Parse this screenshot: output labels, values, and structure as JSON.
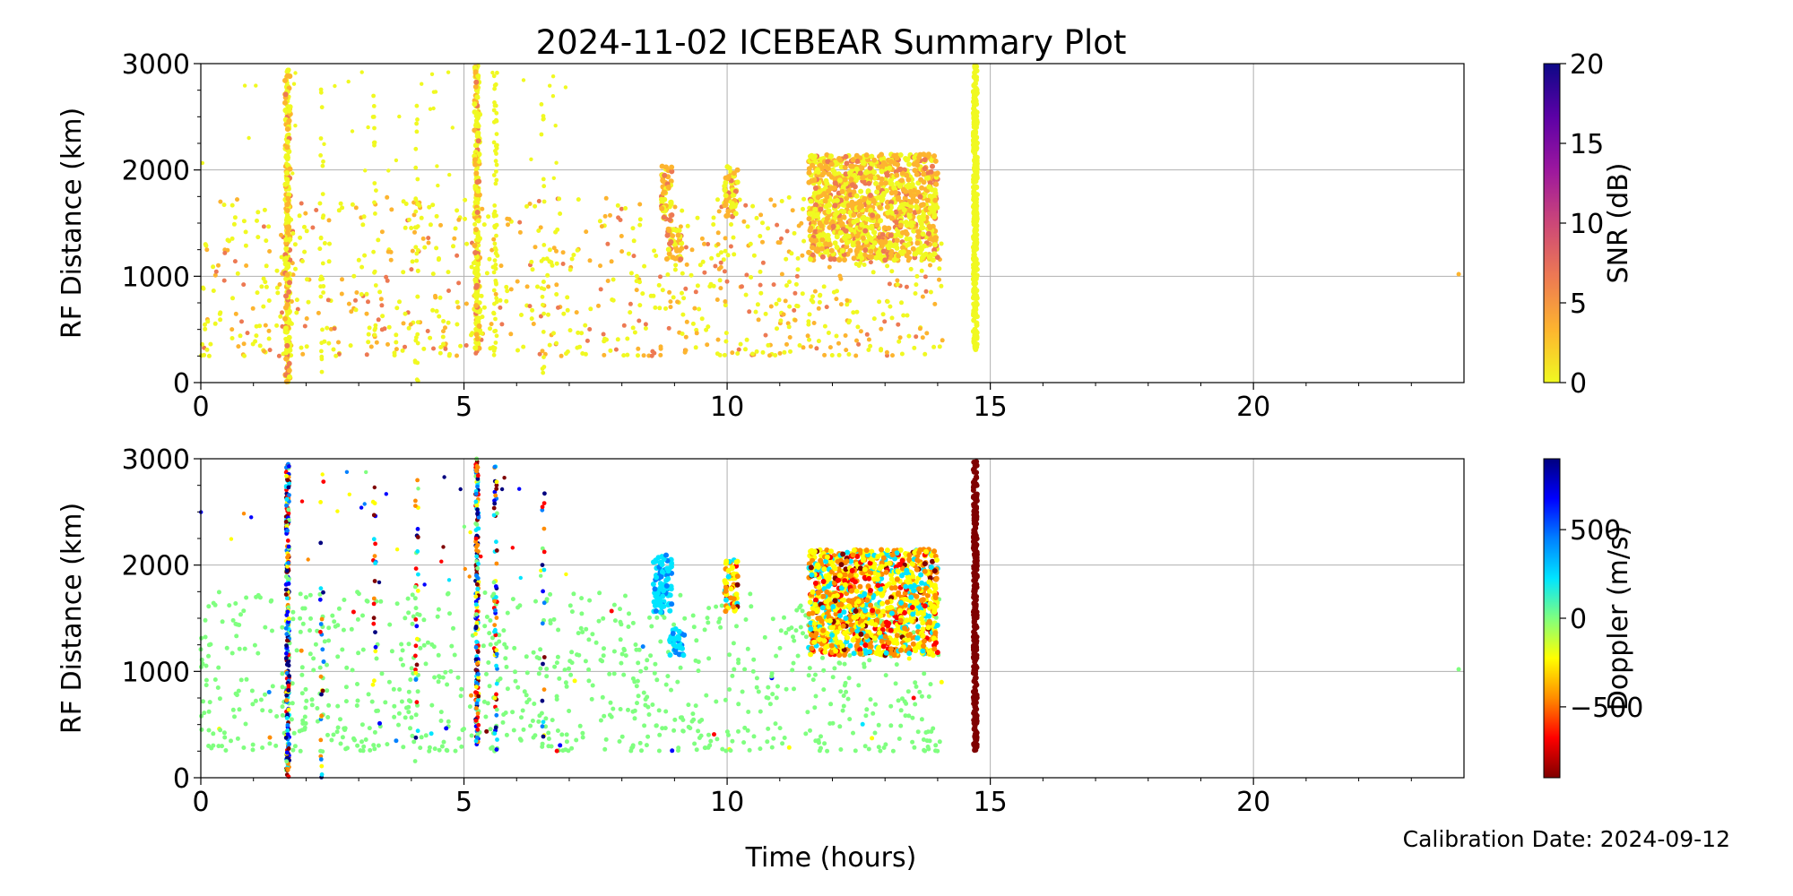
{
  "title": "2024-11-02 ICEBEAR Summary Plot",
  "xlabel": "Time (hours)",
  "footnote": "Calibration Date: 2024-09-12",
  "chart_data": [
    {
      "type": "scatter",
      "panel": "top",
      "ylabel": "RF Distance (km)",
      "xlim": [
        0,
        24
      ],
      "ylim": [
        0,
        3000
      ],
      "xticks": [
        0,
        5,
        10,
        15,
        20
      ],
      "yticks": [
        0,
        1000,
        2000,
        3000
      ],
      "grid": true,
      "colorbar": {
        "label": "SNR (dB)",
        "range": [
          0,
          20
        ],
        "ticks": [
          0,
          5,
          10,
          15,
          20
        ],
        "colors": [
          "#f0f921",
          "#fdb42f",
          "#ed7953",
          "#cc4778",
          "#9c179e",
          "#5c01a6",
          "#0d0887"
        ]
      },
      "clusters": [
        {
          "x": [
            8.75,
            8.95
          ],
          "y": [
            1500,
            2050
          ],
          "note": "echo"
        },
        {
          "x": [
            8.85,
            9.15
          ],
          "y": [
            1150,
            1450
          ],
          "note": "echo"
        },
        {
          "x": [
            9.95,
            10.2
          ],
          "y": [
            1550,
            2050
          ],
          "note": "echo"
        },
        {
          "x": [
            11.55,
            14.0
          ],
          "y": [
            1150,
            2150
          ],
          "note": "echo"
        },
        {
          "x": [
            14.68,
            14.75
          ],
          "y": [
            300,
            3000
          ],
          "note": "vertical band"
        },
        {
          "x": [
            1.6,
            1.7
          ],
          "y": [
            0,
            2950
          ],
          "note": "vertical band"
        },
        {
          "x": [
            5.2,
            5.3
          ],
          "y": [
            300,
            3000
          ],
          "note": "vertical band"
        }
      ]
    },
    {
      "type": "scatter",
      "panel": "bottom",
      "ylabel": "RF Distance (km)",
      "xlim": [
        0,
        24
      ],
      "ylim": [
        0,
        3000
      ],
      "xticks": [
        0,
        5,
        10,
        15,
        20
      ],
      "yticks": [
        0,
        1000,
        2000,
        3000
      ],
      "grid": true,
      "colorbar": {
        "label": "Doppler (m/s)",
        "range": [
          -900,
          900
        ],
        "ticks": [
          -500,
          0,
          500
        ],
        "tick_labels": [
          "−500",
          "0",
          "500"
        ],
        "colors": [
          "#7f0000",
          "#ff0000",
          "#ff8c00",
          "#ffff00",
          "#7fff7f",
          "#00e5ff",
          "#0080ff",
          "#0000ff",
          "#00007f"
        ]
      },
      "clusters": [
        {
          "x": [
            8.6,
            8.95
          ],
          "y": [
            1550,
            2100
          ],
          "note": "echo"
        },
        {
          "x": [
            8.9,
            9.2
          ],
          "y": [
            1150,
            1400
          ],
          "note": "echo"
        },
        {
          "x": [
            9.95,
            10.2
          ],
          "y": [
            1550,
            2050
          ],
          "note": "echo"
        },
        {
          "x": [
            11.55,
            14.0
          ],
          "y": [
            1150,
            2150
          ],
          "note": "echo"
        },
        {
          "x": [
            14.68,
            14.75
          ],
          "y": [
            250,
            3000
          ],
          "note": "vertical band"
        }
      ]
    }
  ]
}
